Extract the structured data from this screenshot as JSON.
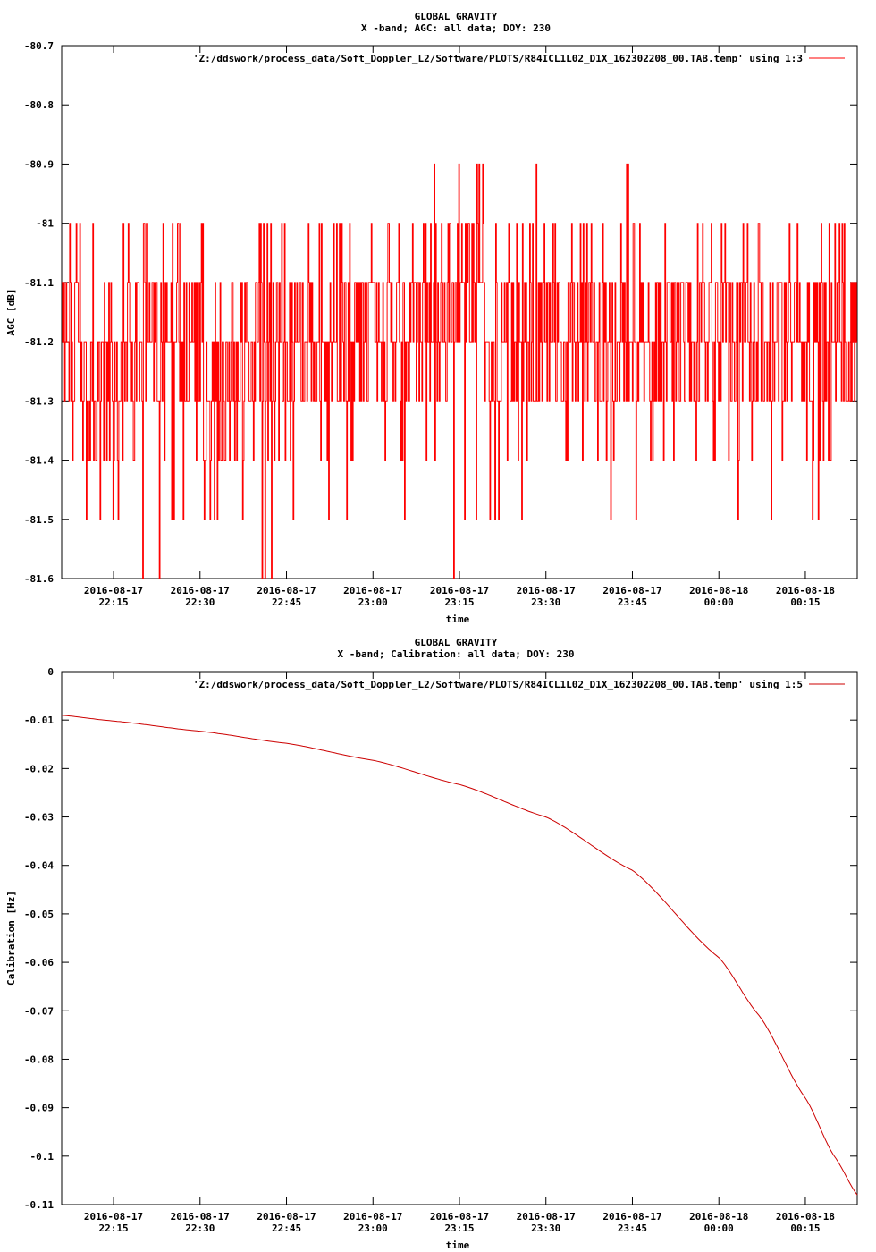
{
  "chart_data": [
    {
      "type": "line",
      "title": "GLOBAL GRAVITY",
      "subtitle": "X -band; AGC: all data; DOY: 230",
      "xlabel": "time",
      "ylabel": "AGC [dB]",
      "ylim": [
        -81.6,
        -80.7
      ],
      "yticks": [
        "-80.7",
        "-80.8",
        "-80.9",
        "-81",
        "-81.1",
        "-81.2",
        "-81.3",
        "-81.4",
        "-81.5",
        "-81.6"
      ],
      "ytick_values": [
        -80.7,
        -80.8,
        -80.9,
        -81.0,
        -81.1,
        -81.2,
        -81.3,
        -81.4,
        -81.5,
        -81.6
      ],
      "xlim": [
        "2016-08-17 22:06",
        "2016-08-18 00:24"
      ],
      "xticks": [
        {
          "date": "2016-08-17",
          "time": "22:15",
          "value": "2016-08-17 22:15"
        },
        {
          "date": "2016-08-17",
          "time": "22:30",
          "value": "2016-08-17 22:30"
        },
        {
          "date": "2016-08-17",
          "time": "22:45",
          "value": "2016-08-17 22:45"
        },
        {
          "date": "2016-08-17",
          "time": "23:00",
          "value": "2016-08-17 23:00"
        },
        {
          "date": "2016-08-17",
          "time": "23:15",
          "value": "2016-08-17 23:15"
        },
        {
          "date": "2016-08-17",
          "time": "23:30",
          "value": "2016-08-17 23:30"
        },
        {
          "date": "2016-08-17",
          "time": "23:45",
          "value": "2016-08-17 23:45"
        },
        {
          "date": "2016-08-18",
          "time": "00:00",
          "value": "2016-08-18 00:00"
        },
        {
          "date": "2016-08-18",
          "time": "00:15",
          "value": "2016-08-18 00:15"
        }
      ],
      "legend_position": "top-right",
      "grid": false,
      "series": [
        {
          "name": "'Z:/ddswork/process_data/Soft_Doppler_L2/Software/PLOTS/R84ICL1L02_D1X_162302208_00.TAB.temp' using 1:3",
          "color": "#ff0000",
          "x": [
            "2016-08-17 22:06",
            "2016-08-17 22:13",
            "2016-08-17 22:20",
            "2016-08-17 22:27",
            "2016-08-17 22:34",
            "2016-08-17 22:41",
            "2016-08-17 22:48",
            "2016-08-17 22:55",
            "2016-08-17 23:02",
            "2016-08-17 23:09",
            "2016-08-17 23:14",
            "2016-08-17 23:16",
            "2016-08-17 23:23",
            "2016-08-17 23:30",
            "2016-08-17 23:37",
            "2016-08-17 23:44",
            "2016-08-17 23:51",
            "2016-08-17 23:58",
            "2016-08-18 00:05",
            "2016-08-18 00:12",
            "2016-08-18 00:19",
            "2016-08-18 00:24"
          ],
          "y": [
            -81.2,
            -81.3,
            -81.2,
            -81.2,
            -81.3,
            -81.2,
            -81.2,
            -81.2,
            -81.2,
            -81.2,
            -81.1,
            -81.1,
            -81.2,
            -81.2,
            -81.2,
            -81.2,
            -81.2,
            -81.2,
            -81.2,
            -81.2,
            -81.2,
            -81.2
          ],
          "y_min": [
            -81.4,
            -81.5,
            -81.6,
            -81.5,
            -81.6,
            -81.6,
            -81.5,
            -81.5,
            -81.5,
            -81.4,
            -81.6,
            -81.45,
            -81.5,
            -81.5,
            -81.5,
            -81.5,
            -81.5,
            -81.5,
            -81.5,
            -81.5,
            -81.5,
            -81.5
          ],
          "y_max": [
            -81.0,
            -81.0,
            -81.0,
            -81.0,
            -81.0,
            -81.0,
            -81.0,
            -81.0,
            -81.0,
            -81.0,
            -80.8,
            -80.9,
            -80.9,
            -80.9,
            -80.9,
            -80.9,
            -81.0,
            -81.0,
            -81.0,
            -81.0,
            -80.9,
            -81.0
          ]
        }
      ]
    },
    {
      "type": "line",
      "title": "GLOBAL GRAVITY",
      "subtitle": "X -band; Calibration: all data; DOY: 230",
      "xlabel": "time",
      "ylabel": "Calibration [Hz]",
      "ylim": [
        -0.11,
        0
      ],
      "yticks": [
        "0",
        "-0.01",
        "-0.02",
        "-0.03",
        "-0.04",
        "-0.05",
        "-0.06",
        "-0.07",
        "-0.08",
        "-0.09",
        "-0.1",
        "-0.11"
      ],
      "ytick_values": [
        0,
        -0.01,
        -0.02,
        -0.03,
        -0.04,
        -0.05,
        -0.06,
        -0.07,
        -0.08,
        -0.09,
        -0.1,
        -0.11
      ],
      "xlim": [
        "2016-08-17 22:06",
        "2016-08-18 00:24"
      ],
      "xticks": [
        {
          "date": "2016-08-17",
          "time": "22:15",
          "value": "2016-08-17 22:15"
        },
        {
          "date": "2016-08-17",
          "time": "22:30",
          "value": "2016-08-17 22:30"
        },
        {
          "date": "2016-08-17",
          "time": "22:45",
          "value": "2016-08-17 22:45"
        },
        {
          "date": "2016-08-17",
          "time": "23:00",
          "value": "2016-08-17 23:00"
        },
        {
          "date": "2016-08-17",
          "time": "23:15",
          "value": "2016-08-17 23:15"
        },
        {
          "date": "2016-08-17",
          "time": "23:30",
          "value": "2016-08-17 23:30"
        },
        {
          "date": "2016-08-17",
          "time": "23:45",
          "value": "2016-08-17 23:45"
        },
        {
          "date": "2016-08-18",
          "time": "00:00",
          "value": "2016-08-18 00:00"
        },
        {
          "date": "2016-08-18",
          "time": "00:15",
          "value": "2016-08-18 00:15"
        }
      ],
      "legend_position": "top-right",
      "grid": false,
      "series": [
        {
          "name": "'Z:/ddswork/process_data/Soft_Doppler_L2/Software/PLOTS/R84ICL1L02_D1X_162302208_00.TAB.temp' using 1:5",
          "color": "#cc0000",
          "x": [
            "2016-08-17 22:06",
            "2016-08-17 22:15",
            "2016-08-17 22:30",
            "2016-08-17 22:45",
            "2016-08-17 23:00",
            "2016-08-17 23:15",
            "2016-08-17 23:30",
            "2016-08-17 23:45",
            "2016-08-18 00:00",
            "2016-08-18 00:07",
            "2016-08-18 00:15",
            "2016-08-18 00:20",
            "2016-08-18 00:24"
          ],
          "y": [
            -0.009,
            -0.0102,
            -0.0123,
            -0.0148,
            -0.0183,
            -0.0233,
            -0.03,
            -0.041,
            -0.059,
            -0.071,
            -0.088,
            -0.1,
            -0.108
          ]
        }
      ]
    }
  ]
}
